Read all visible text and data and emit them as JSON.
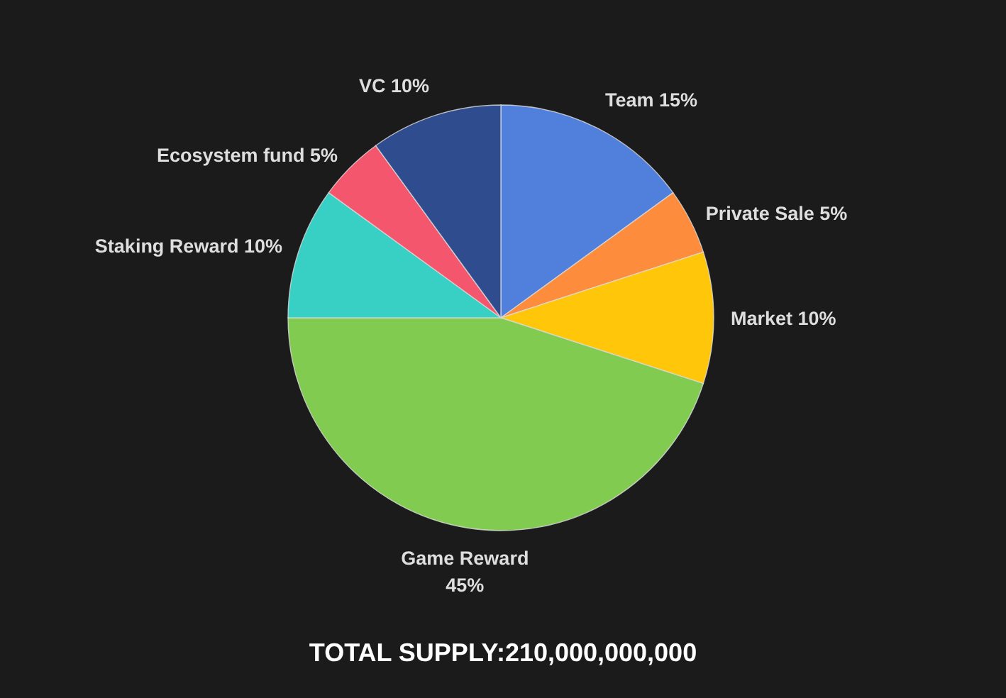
{
  "chart_data": {
    "type": "pie",
    "categories": [
      "Team",
      "Private Sale",
      "Market",
      "Game Reward",
      "Staking Reward",
      "Ecosystem fund",
      "VC"
    ],
    "values": [
      15,
      5,
      10,
      45,
      10,
      5,
      10
    ],
    "colors": [
      "#5080dc",
      "#fd8d3c",
      "#ffc60a",
      "#80cb50",
      "#38cfc4",
      "#f4566e",
      "#2e4c8e"
    ],
    "value_labels": [
      "15%",
      "5%",
      "10%",
      "45%",
      "10%",
      "5%",
      "10%"
    ],
    "annotations": [
      "TOTAL SUPPLY:210,000,000,000"
    ]
  }
}
